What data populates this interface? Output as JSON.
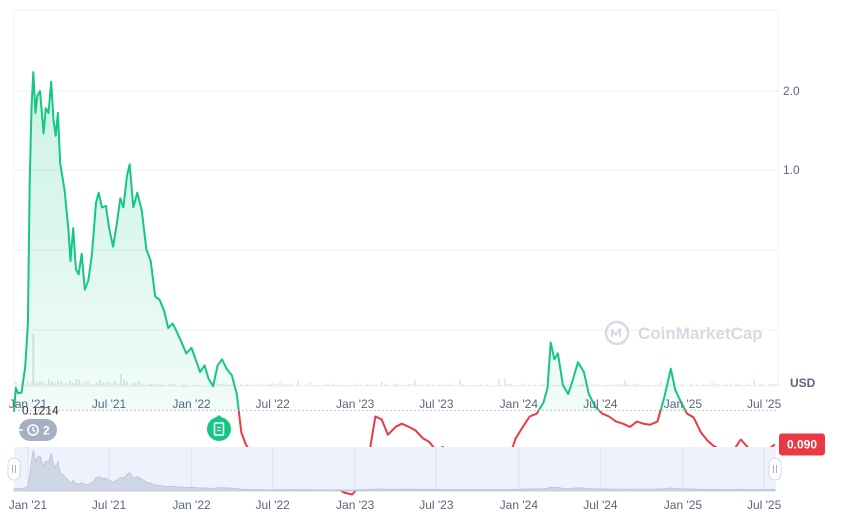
{
  "chart_data": {
    "type": "line",
    "x_range": [
      "2020-12-01",
      "2025-08-01"
    ],
    "baseline_value": 0.1214,
    "baseline_label": "0.1214",
    "current_price_label": "0.090",
    "y_scale": "log",
    "y_ticks": [
      {
        "value": 2.0,
        "label": "2.0"
      },
      {
        "value": 1.0,
        "label": "1.0"
      }
    ],
    "y_unit": "USD",
    "x_ticks": [
      {
        "date": "2021-01-01",
        "label": "Jan '21"
      },
      {
        "date": "2021-07-01",
        "label": "Jul '21"
      },
      {
        "date": "2022-01-01",
        "label": "Jan '22"
      },
      {
        "date": "2022-07-01",
        "label": "Jul '22"
      },
      {
        "date": "2023-01-01",
        "label": "Jan '23"
      },
      {
        "date": "2023-07-01",
        "label": "Jul '23"
      },
      {
        "date": "2024-01-01",
        "label": "Jan '24"
      },
      {
        "date": "2024-07-01",
        "label": "Jul '24"
      },
      {
        "date": "2025-01-01",
        "label": "Jan '25"
      },
      {
        "date": "2025-07-01",
        "label": "Jul '25"
      }
    ],
    "series": [
      {
        "color_up": "#16c784",
        "color_down": "#ea3943",
        "points": [
          [
            "2020-12-01",
            0.12
          ],
          [
            "2020-12-05",
            0.148
          ],
          [
            "2020-12-10",
            0.141
          ],
          [
            "2020-12-18",
            0.142
          ],
          [
            "2020-12-26",
            0.178
          ],
          [
            "2021-01-01",
            0.26
          ],
          [
            "2021-01-05",
            0.9
          ],
          [
            "2021-01-09",
            1.72
          ],
          [
            "2021-01-13",
            2.36
          ],
          [
            "2021-01-18",
            1.65
          ],
          [
            "2021-01-22",
            1.92
          ],
          [
            "2021-01-28",
            2.0
          ],
          [
            "2021-02-05",
            1.38
          ],
          [
            "2021-02-10",
            1.72
          ],
          [
            "2021-02-16",
            1.65
          ],
          [
            "2021-02-22",
            2.17
          ],
          [
            "2021-02-27",
            1.55
          ],
          [
            "2021-03-04",
            1.35
          ],
          [
            "2021-03-09",
            1.65
          ],
          [
            "2021-03-14",
            1.06
          ],
          [
            "2021-03-24",
            0.83
          ],
          [
            "2021-04-01",
            0.6
          ],
          [
            "2021-04-06",
            0.45
          ],
          [
            "2021-04-12",
            0.6
          ],
          [
            "2021-04-18",
            0.42
          ],
          [
            "2021-04-24",
            0.4
          ],
          [
            "2021-05-01",
            0.48
          ],
          [
            "2021-05-08",
            0.35
          ],
          [
            "2021-05-16",
            0.38
          ],
          [
            "2021-05-24",
            0.48
          ],
          [
            "2021-06-02",
            0.75
          ],
          [
            "2021-06-08",
            0.82
          ],
          [
            "2021-06-15",
            0.72
          ],
          [
            "2021-06-24",
            0.73
          ],
          [
            "2021-07-01",
            0.6
          ],
          [
            "2021-07-10",
            0.51
          ],
          [
            "2021-07-18",
            0.62
          ],
          [
            "2021-07-26",
            0.78
          ],
          [
            "2021-08-02",
            0.72
          ],
          [
            "2021-08-10",
            0.95
          ],
          [
            "2021-08-16",
            1.05
          ],
          [
            "2021-08-24",
            0.72
          ],
          [
            "2021-09-02",
            0.82
          ],
          [
            "2021-09-12",
            0.7
          ],
          [
            "2021-09-22",
            0.5
          ],
          [
            "2021-10-02",
            0.45
          ],
          [
            "2021-10-12",
            0.33
          ],
          [
            "2021-10-22",
            0.32
          ],
          [
            "2021-11-01",
            0.29
          ],
          [
            "2021-11-10",
            0.25
          ],
          [
            "2021-11-20",
            0.26
          ],
          [
            "2021-11-30",
            0.24
          ],
          [
            "2021-12-10",
            0.22
          ],
          [
            "2021-12-20",
            0.2
          ],
          [
            "2022-01-01",
            0.21
          ],
          [
            "2022-01-10",
            0.19
          ],
          [
            "2022-01-20",
            0.17
          ],
          [
            "2022-01-30",
            0.18
          ],
          [
            "2022-02-08",
            0.16
          ],
          [
            "2022-02-18",
            0.15
          ],
          [
            "2022-02-28",
            0.18
          ],
          [
            "2022-03-10",
            0.19
          ],
          [
            "2022-03-20",
            0.175
          ],
          [
            "2022-04-01",
            0.165
          ],
          [
            "2022-04-12",
            0.14
          ],
          [
            "2022-04-22",
            0.1
          ],
          [
            "2022-05-02",
            0.09
          ],
          [
            "2022-05-15",
            0.083
          ],
          [
            "2022-05-25",
            0.078
          ],
          [
            "2022-06-05",
            0.072
          ],
          [
            "2022-06-18",
            0.064
          ],
          [
            "2022-07-01",
            0.065
          ],
          [
            "2022-07-15",
            0.072
          ],
          [
            "2022-07-30",
            0.069
          ],
          [
            "2022-08-10",
            0.085
          ],
          [
            "2022-08-25",
            0.08
          ],
          [
            "2022-09-10",
            0.071
          ],
          [
            "2022-09-25",
            0.066
          ],
          [
            "2022-10-10",
            0.065
          ],
          [
            "2022-10-25",
            0.063
          ],
          [
            "2022-11-08",
            0.062
          ],
          [
            "2022-11-22",
            0.061
          ],
          [
            "2022-12-08",
            0.059
          ],
          [
            "2022-12-25",
            0.058
          ],
          [
            "2023-01-10",
            0.062
          ],
          [
            "2023-01-28",
            0.075
          ],
          [
            "2023-02-15",
            0.115
          ],
          [
            "2023-03-01",
            0.112
          ],
          [
            "2023-03-15",
            0.098
          ],
          [
            "2023-04-01",
            0.105
          ],
          [
            "2023-04-15",
            0.108
          ],
          [
            "2023-05-01",
            0.105
          ],
          [
            "2023-05-15",
            0.102
          ],
          [
            "2023-06-01",
            0.095
          ],
          [
            "2023-06-15",
            0.092
          ],
          [
            "2023-07-01",
            0.085
          ],
          [
            "2023-07-15",
            0.088
          ],
          [
            "2023-08-01",
            0.085
          ],
          [
            "2023-08-20",
            0.082
          ],
          [
            "2023-09-10",
            0.08
          ],
          [
            "2023-10-01",
            0.078
          ],
          [
            "2023-10-20",
            0.075
          ],
          [
            "2023-11-10",
            0.074
          ],
          [
            "2023-11-25",
            0.072
          ],
          [
            "2023-12-10",
            0.08
          ],
          [
            "2023-12-25",
            0.095
          ],
          [
            "2024-01-10",
            0.105
          ],
          [
            "2024-01-25",
            0.115
          ],
          [
            "2024-02-10",
            0.118
          ],
          [
            "2024-02-25",
            0.13
          ],
          [
            "2024-03-05",
            0.148
          ],
          [
            "2024-03-12",
            0.22
          ],
          [
            "2024-03-20",
            0.19
          ],
          [
            "2024-03-28",
            0.2
          ],
          [
            "2024-04-08",
            0.152
          ],
          [
            "2024-04-20",
            0.14
          ],
          [
            "2024-05-01",
            0.16
          ],
          [
            "2024-05-12",
            0.185
          ],
          [
            "2024-05-25",
            0.17
          ],
          [
            "2024-06-05",
            0.14
          ],
          [
            "2024-06-20",
            0.125
          ],
          [
            "2024-07-05",
            0.118
          ],
          [
            "2024-07-20",
            0.115
          ],
          [
            "2024-08-05",
            0.11
          ],
          [
            "2024-08-20",
            0.108
          ],
          [
            "2024-09-05",
            0.105
          ],
          [
            "2024-09-20",
            0.11
          ],
          [
            "2024-10-05",
            0.108
          ],
          [
            "2024-10-20",
            0.107
          ],
          [
            "2024-11-05",
            0.11
          ],
          [
            "2024-11-20",
            0.135
          ],
          [
            "2024-12-05",
            0.175
          ],
          [
            "2024-12-15",
            0.145
          ],
          [
            "2024-12-28",
            0.13
          ],
          [
            "2025-01-10",
            0.118
          ],
          [
            "2025-01-25",
            0.114
          ],
          [
            "2025-02-10",
            0.1
          ],
          [
            "2025-02-25",
            0.093
          ],
          [
            "2025-03-10",
            0.089
          ],
          [
            "2025-03-25",
            0.086
          ],
          [
            "2025-04-10",
            0.082
          ],
          [
            "2025-04-25",
            0.086
          ],
          [
            "2025-05-10",
            0.094
          ],
          [
            "2025-05-25",
            0.088
          ],
          [
            "2025-06-10",
            0.083
          ],
          [
            "2025-06-25",
            0.08
          ],
          [
            "2025-07-10",
            0.086
          ],
          [
            "2025-07-25",
            0.09
          ]
        ]
      }
    ],
    "volume_spike_date": "2021-01-13",
    "navigator": {
      "x_ticks": [
        "Jan '21",
        "Jul '21",
        "Jan '22",
        "Jul '22",
        "Jan '23",
        "Jul '23",
        "Jan '24",
        "Jul '24",
        "Jan '25",
        "Jul '25"
      ]
    },
    "legend": "none",
    "grid": true
  },
  "watermark": {
    "text": "CoinMarketCap"
  },
  "history_badge": {
    "count": "2"
  },
  "colors": {
    "up": "#16c784",
    "down": "#ea3943",
    "grid": "#eef0f4",
    "axis_text": "#58667e",
    "navigator_bg": "#eef2fd",
    "navigator_area": "#cfd6e6",
    "badge_gray": "#a6b0c3",
    "event_green": "#16c784"
  },
  "icons": {
    "history": "history-icon",
    "event": "document-icon",
    "handle": "drag-handle-icon",
    "watermark_logo": "coinmarketcap-logo-icon"
  }
}
